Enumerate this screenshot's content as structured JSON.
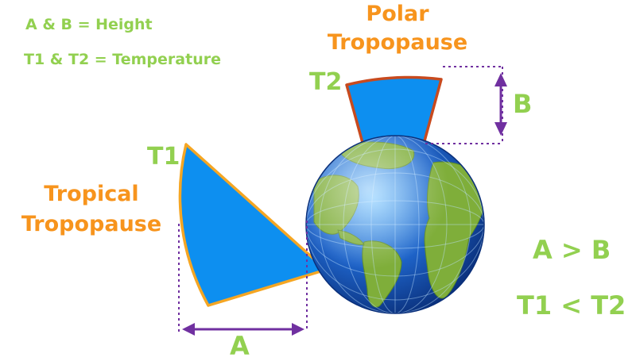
{
  "legend": {
    "height_note": "A & B = Height",
    "temperature_note": "T1 & T2 = Temperature"
  },
  "labels": {
    "polar_line1": "Polar",
    "polar_line2": "Tropopause",
    "tropical_line1": "Tropical",
    "tropical_line2": "Tropopause",
    "t1": "T1",
    "t2": "T2",
    "a": "A",
    "b": "B"
  },
  "comparisons": {
    "height": "A > B",
    "temperature": "T1 < T2"
  },
  "colors": {
    "green_text": "#92d050",
    "orange_text": "#f7941d",
    "purple_measure": "#7030a0",
    "sector_fill": "#0d8ff0",
    "tropical_outline": "#f5a623",
    "polar_outline": "#c84a1e",
    "ocean": "#1e63c8",
    "land": "#7fae3a"
  },
  "icons": {
    "globe": "earth-globe-icon"
  }
}
